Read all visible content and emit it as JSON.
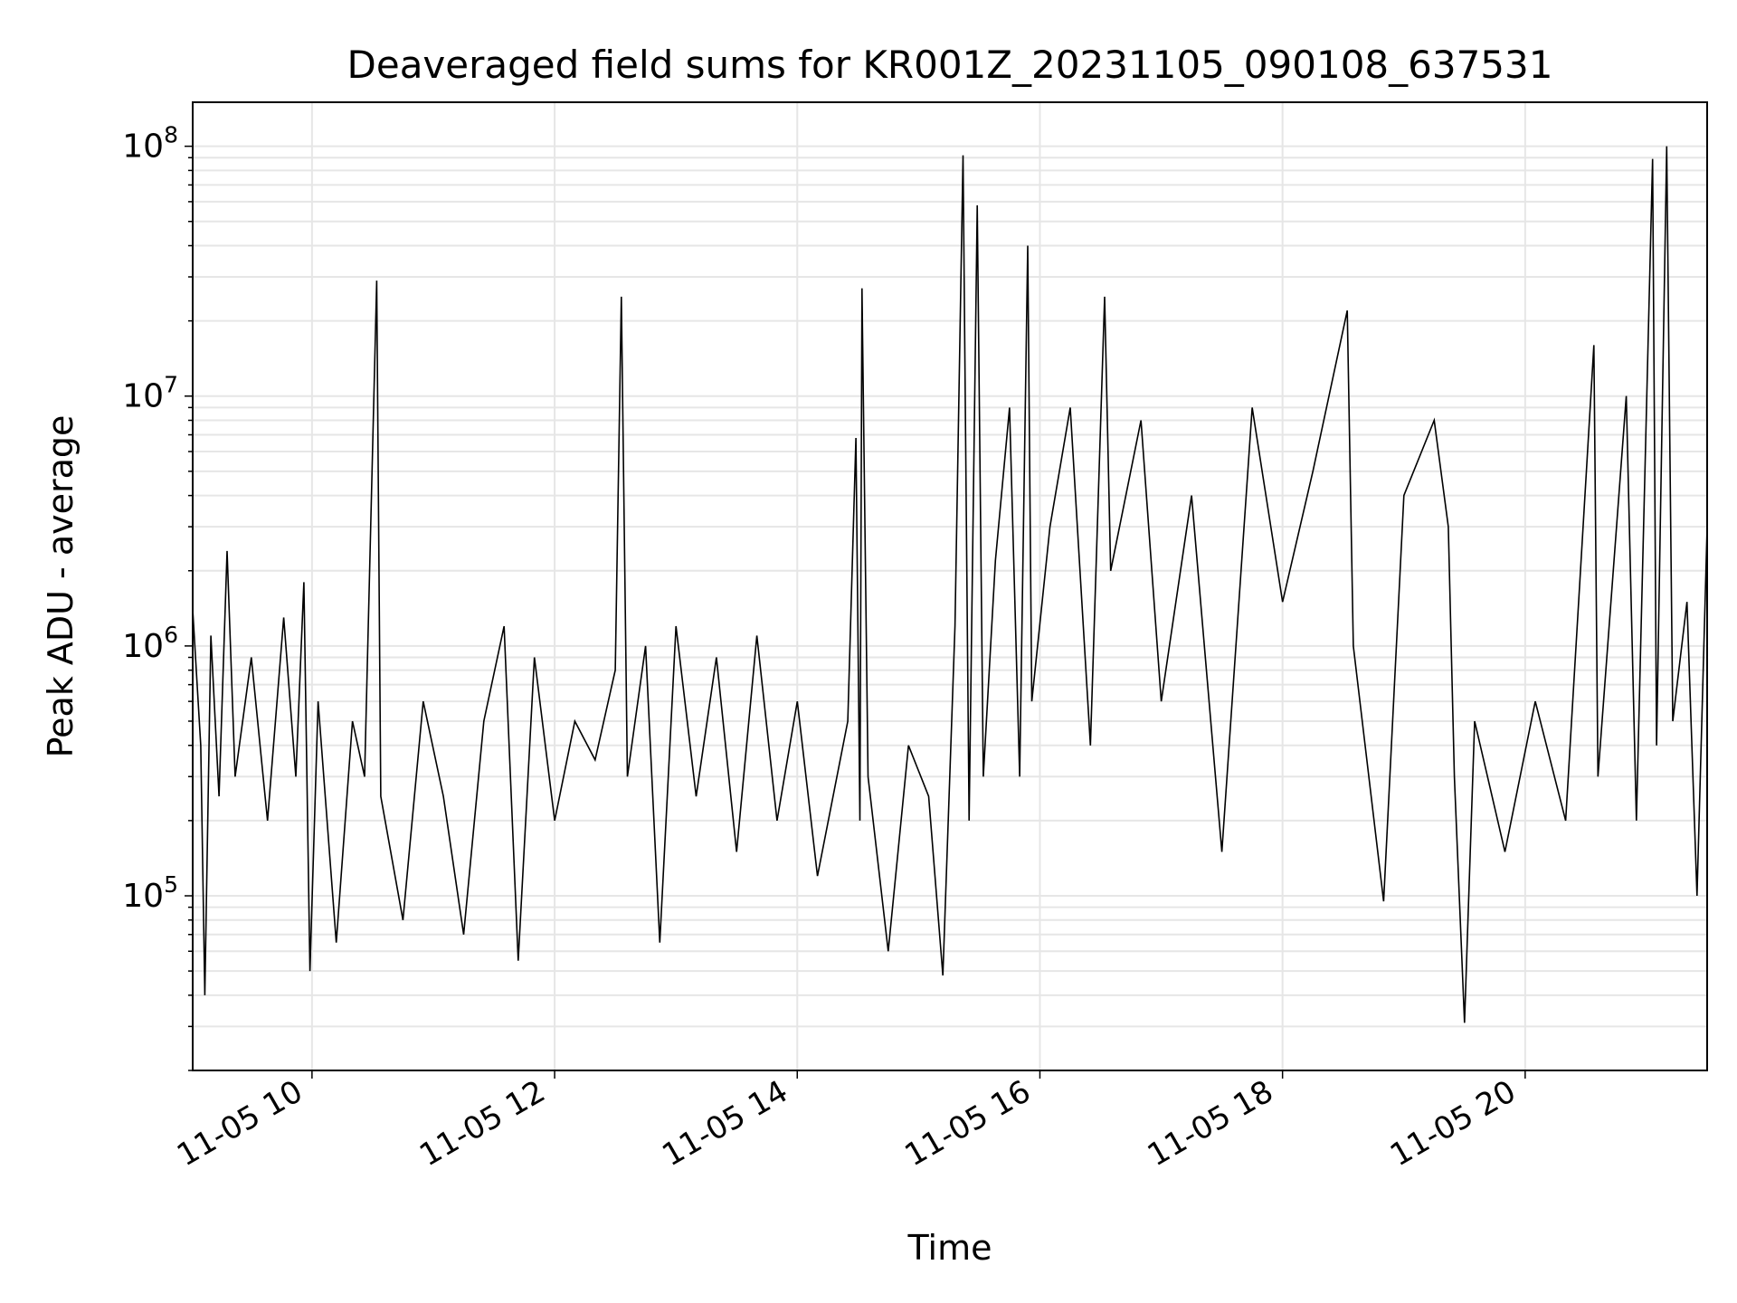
{
  "chart_data": {
    "type": "line",
    "title": "Deaveraged field sums for KR001Z_20231105_090108_637531",
    "xlabel": "Time",
    "ylabel": "Peak ADU - average",
    "yscale": "log",
    "grid": true,
    "legend": "none",
    "line_color": "#000000",
    "grid_color": "#e6e6e6",
    "xlim": [
      "2023-11-05 09:01",
      "2023-11-05 21:30"
    ],
    "ylim": [
      20000,
      150000000
    ],
    "x_ticks": [
      {
        "value": "2023-11-05 10:00",
        "label": "11-05 10"
      },
      {
        "value": "2023-11-05 12:00",
        "label": "11-05 12"
      },
      {
        "value": "2023-11-05 14:00",
        "label": "11-05 14"
      },
      {
        "value": "2023-11-05 16:00",
        "label": "11-05 16"
      },
      {
        "value": "2023-11-05 18:00",
        "label": "11-05 18"
      },
      {
        "value": "2023-11-05 20:00",
        "label": "11-05 20"
      }
    ],
    "y_ticks": [
      {
        "value": 100000,
        "base": "10",
        "exp": "5"
      },
      {
        "value": 1000000,
        "base": "10",
        "exp": "6"
      },
      {
        "value": 10000000,
        "base": "10",
        "exp": "7"
      },
      {
        "value": 100000000,
        "base": "10",
        "exp": "8"
      }
    ],
    "series": [
      {
        "values": [
          [
            "2023-11-05 09:01",
            1400000
          ],
          [
            "2023-11-05 09:05",
            400000
          ],
          [
            "2023-11-05 09:07",
            40000
          ],
          [
            "2023-11-05 09:10",
            1100000
          ],
          [
            "2023-11-05 09:14",
            250000
          ],
          [
            "2023-11-05 09:18",
            2400000
          ],
          [
            "2023-11-05 09:22",
            300000
          ],
          [
            "2023-11-05 09:30",
            900000
          ],
          [
            "2023-11-05 09:38",
            200000
          ],
          [
            "2023-11-05 09:46",
            1300000
          ],
          [
            "2023-11-05 09:52",
            300000
          ],
          [
            "2023-11-05 09:56",
            1800000
          ],
          [
            "2023-11-05 09:59",
            50000
          ],
          [
            "2023-11-05 10:03",
            600000
          ],
          [
            "2023-11-05 10:12",
            65000
          ],
          [
            "2023-11-05 10:20",
            500000
          ],
          [
            "2023-11-05 10:26",
            300000
          ],
          [
            "2023-11-05 10:32",
            29000000
          ],
          [
            "2023-11-05 10:34",
            250000
          ],
          [
            "2023-11-05 10:45",
            80000
          ],
          [
            "2023-11-05 10:55",
            600000
          ],
          [
            "2023-11-05 11:05",
            250000
          ],
          [
            "2023-11-05 11:15",
            70000
          ],
          [
            "2023-11-05 11:25",
            500000
          ],
          [
            "2023-11-05 11:35",
            1200000
          ],
          [
            "2023-11-05 11:42",
            55000
          ],
          [
            "2023-11-05 11:50",
            900000
          ],
          [
            "2023-11-05 12:00",
            200000
          ],
          [
            "2023-11-05 12:10",
            500000
          ],
          [
            "2023-11-05 12:20",
            350000
          ],
          [
            "2023-11-05 12:30",
            800000
          ],
          [
            "2023-11-05 12:33",
            25000000
          ],
          [
            "2023-11-05 12:36",
            300000
          ],
          [
            "2023-11-05 12:45",
            1000000
          ],
          [
            "2023-11-05 12:52",
            65000
          ],
          [
            "2023-11-05 13:00",
            1200000
          ],
          [
            "2023-11-05 13:10",
            250000
          ],
          [
            "2023-11-05 13:20",
            900000
          ],
          [
            "2023-11-05 13:30",
            150000
          ],
          [
            "2023-11-05 13:40",
            1100000
          ],
          [
            "2023-11-05 13:50",
            200000
          ],
          [
            "2023-11-05 14:00",
            600000
          ],
          [
            "2023-11-05 14:10",
            120000
          ],
          [
            "2023-11-05 14:25",
            500000
          ],
          [
            "2023-11-05 14:29",
            6800000
          ],
          [
            "2023-11-05 14:31",
            200000
          ],
          [
            "2023-11-05 14:32",
            27000000
          ],
          [
            "2023-11-05 14:35",
            300000
          ],
          [
            "2023-11-05 14:45",
            60000
          ],
          [
            "2023-11-05 14:55",
            400000
          ],
          [
            "2023-11-05 15:05",
            250000
          ],
          [
            "2023-11-05 15:12",
            48000
          ],
          [
            "2023-11-05 15:18",
            1200000
          ],
          [
            "2023-11-05 15:22",
            92000000
          ],
          [
            "2023-11-05 15:25",
            200000
          ],
          [
            "2023-11-05 15:29",
            58000000
          ],
          [
            "2023-11-05 15:32",
            300000
          ],
          [
            "2023-11-05 15:38",
            2200000
          ],
          [
            "2023-11-05 15:45",
            9000000
          ],
          [
            "2023-11-05 15:50",
            300000
          ],
          [
            "2023-11-05 15:54",
            40000000
          ],
          [
            "2023-11-05 15:56",
            600000
          ],
          [
            "2023-11-05 16:05",
            3000000
          ],
          [
            "2023-11-05 16:15",
            9000000
          ],
          [
            "2023-11-05 16:25",
            400000
          ],
          [
            "2023-11-05 16:32",
            25000000
          ],
          [
            "2023-11-05 16:35",
            2000000
          ],
          [
            "2023-11-05 16:50",
            8000000
          ],
          [
            "2023-11-05 17:00",
            600000
          ],
          [
            "2023-11-05 17:15",
            4000000
          ],
          [
            "2023-11-05 17:30",
            150000
          ],
          [
            "2023-11-05 17:45",
            9000000
          ],
          [
            "2023-11-05 18:00",
            1500000
          ],
          [
            "2023-11-05 18:15",
            5000000
          ],
          [
            "2023-11-05 18:32",
            22000000
          ],
          [
            "2023-11-05 18:35",
            1000000
          ],
          [
            "2023-11-05 18:50",
            95000
          ],
          [
            "2023-11-05 19:00",
            4000000
          ],
          [
            "2023-11-05 19:15",
            8000000
          ],
          [
            "2023-11-05 19:22",
            3000000
          ],
          [
            "2023-11-05 19:25",
            300000
          ],
          [
            "2023-11-05 19:30",
            31000
          ],
          [
            "2023-11-05 19:35",
            500000
          ],
          [
            "2023-11-05 19:50",
            150000
          ],
          [
            "2023-11-05 20:05",
            600000
          ],
          [
            "2023-11-05 20:20",
            200000
          ],
          [
            "2023-11-05 20:34",
            16000000
          ],
          [
            "2023-11-05 20:36",
            300000
          ],
          [
            "2023-11-05 20:50",
            10000000
          ],
          [
            "2023-11-05 20:55",
            200000
          ],
          [
            "2023-11-05 21:03",
            89000000
          ],
          [
            "2023-11-05 21:05",
            400000
          ],
          [
            "2023-11-05 21:10",
            100000000
          ],
          [
            "2023-11-05 21:13",
            500000
          ],
          [
            "2023-11-05 21:20",
            1500000
          ],
          [
            "2023-11-05 21:25",
            100000
          ],
          [
            "2023-11-05 21:30",
            3000000
          ]
        ]
      }
    ]
  }
}
